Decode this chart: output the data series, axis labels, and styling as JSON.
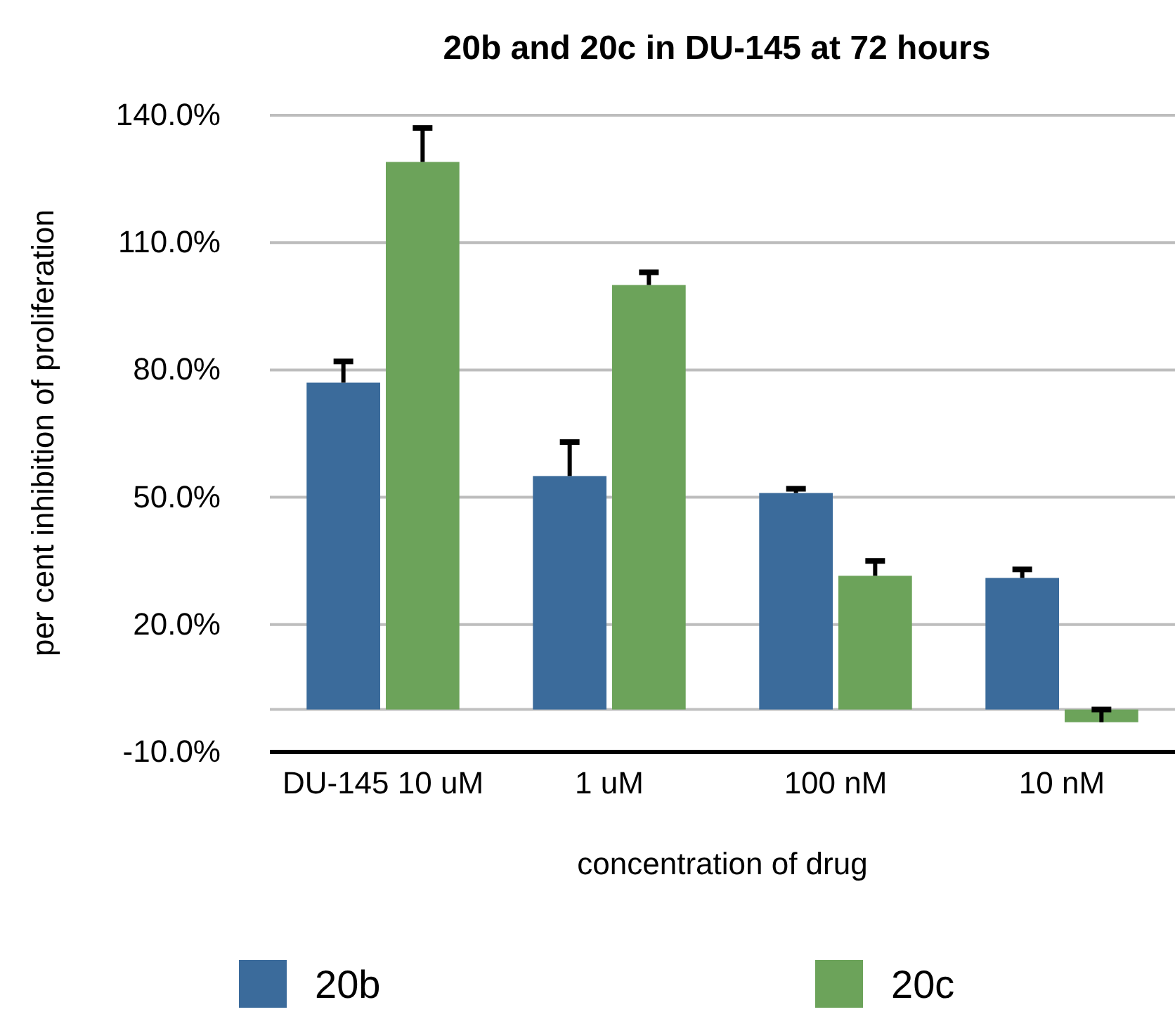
{
  "chart_data": {
    "type": "bar",
    "title": "20b and 20c in DU-145 at 72 hours",
    "xlabel": "concentration of drug",
    "ylabel": "per cent inhibition of proliferation",
    "categories": [
      "DU-145 10 uM",
      "1 uM",
      "100 nM",
      "10 nM"
    ],
    "series": [
      {
        "name": "20b",
        "color": "#3b6b9b",
        "values": [
          77,
          55,
          51,
          31
        ],
        "errors": [
          [
            77,
            82
          ],
          [
            55,
            63
          ],
          [
            51,
            52
          ],
          [
            31,
            33
          ]
        ]
      },
      {
        "name": "20c",
        "color": "#6ca35a",
        "values": [
          129,
          100,
          31.5,
          -3
        ],
        "errors": [
          [
            129,
            137
          ],
          [
            100,
            103
          ],
          [
            31.5,
            35
          ],
          [
            -3,
            0
          ]
        ]
      }
    ],
    "ylim": [
      -10,
      140
    ],
    "yticks": [
      {
        "value": -10,
        "label": "-10.0%"
      },
      {
        "value": 20,
        "label": "20.0%"
      },
      {
        "value": 50,
        "label": "50.0%"
      },
      {
        "value": 80,
        "label": "80.0%"
      },
      {
        "value": 110,
        "label": "110.0%"
      },
      {
        "value": 140,
        "label": "140.0%"
      }
    ],
    "ref_lines": [
      {
        "axis": "y",
        "value": 0,
        "color": "#c0c0c0"
      }
    ],
    "grid": "y",
    "legend": "bottom"
  }
}
